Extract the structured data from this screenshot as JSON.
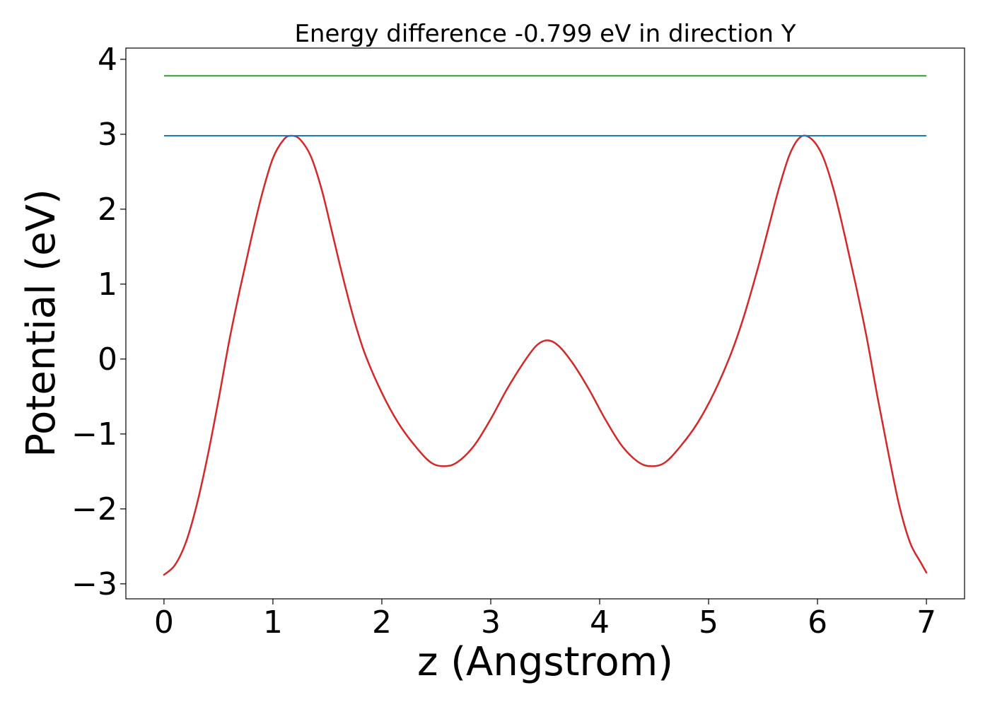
{
  "chart_data": {
    "type": "line",
    "title": "Energy difference -0.799 eV in direction Y",
    "xlabel": "z (Angstrom)",
    "ylabel": "Potential (eV)",
    "xlim": [
      -0.35,
      7.35
    ],
    "ylim": [
      -3.2,
      4.15
    ],
    "x_ticks": [
      0,
      1,
      2,
      3,
      4,
      5,
      6,
      7
    ],
    "x_tick_labels": [
      "0",
      "1",
      "2",
      "3",
      "4",
      "5",
      "6",
      "7"
    ],
    "y_ticks": [
      -3,
      -2,
      -1,
      0,
      1,
      2,
      3,
      4
    ],
    "y_tick_labels": [
      "−3",
      "−2",
      "−1",
      "0",
      "1",
      "2",
      "3",
      "4"
    ],
    "grid": false,
    "legend": "none",
    "series": [
      {
        "color": "#d62728",
        "kind": "curve",
        "points": [
          [
            0.0,
            -2.88
          ],
          [
            0.1,
            -2.75
          ],
          [
            0.2,
            -2.45
          ],
          [
            0.3,
            -1.95
          ],
          [
            0.4,
            -1.3
          ],
          [
            0.5,
            -0.55
          ],
          [
            0.6,
            0.25
          ],
          [
            0.7,
            0.95
          ],
          [
            0.8,
            1.6
          ],
          [
            0.9,
            2.2
          ],
          [
            1.0,
            2.68
          ],
          [
            1.1,
            2.93
          ],
          [
            1.17,
            2.98
          ],
          [
            1.25,
            2.93
          ],
          [
            1.35,
            2.7
          ],
          [
            1.45,
            2.25
          ],
          [
            1.55,
            1.65
          ],
          [
            1.65,
            1.05
          ],
          [
            1.75,
            0.5
          ],
          [
            1.85,
            0.05
          ],
          [
            2.0,
            -0.45
          ],
          [
            2.15,
            -0.85
          ],
          [
            2.3,
            -1.15
          ],
          [
            2.45,
            -1.38
          ],
          [
            2.58,
            -1.43
          ],
          [
            2.7,
            -1.37
          ],
          [
            2.85,
            -1.15
          ],
          [
            3.0,
            -0.8
          ],
          [
            3.15,
            -0.4
          ],
          [
            3.3,
            -0.05
          ],
          [
            3.42,
            0.18
          ],
          [
            3.52,
            0.25
          ],
          [
            3.62,
            0.18
          ],
          [
            3.75,
            -0.05
          ],
          [
            3.9,
            -0.4
          ],
          [
            4.05,
            -0.8
          ],
          [
            4.2,
            -1.15
          ],
          [
            4.35,
            -1.37
          ],
          [
            4.47,
            -1.43
          ],
          [
            4.6,
            -1.38
          ],
          [
            4.75,
            -1.15
          ],
          [
            4.9,
            -0.85
          ],
          [
            5.05,
            -0.45
          ],
          [
            5.2,
            0.05
          ],
          [
            5.32,
            0.55
          ],
          [
            5.45,
            1.2
          ],
          [
            5.55,
            1.75
          ],
          [
            5.65,
            2.3
          ],
          [
            5.75,
            2.75
          ],
          [
            5.85,
            2.97
          ],
          [
            5.95,
            2.93
          ],
          [
            6.05,
            2.7
          ],
          [
            6.15,
            2.25
          ],
          [
            6.25,
            1.65
          ],
          [
            6.35,
            1.0
          ],
          [
            6.45,
            0.3
          ],
          [
            6.55,
            -0.5
          ],
          [
            6.65,
            -1.25
          ],
          [
            6.75,
            -1.95
          ],
          [
            6.85,
            -2.45
          ],
          [
            6.95,
            -2.72
          ],
          [
            7.0,
            -2.85
          ]
        ]
      },
      {
        "color": "#1f77b4",
        "kind": "hline",
        "y": 2.98,
        "x_range": [
          0,
          7
        ]
      },
      {
        "color": "#2ca02c",
        "kind": "hline",
        "y": 3.78,
        "x_range": [
          0,
          7
        ]
      }
    ]
  }
}
